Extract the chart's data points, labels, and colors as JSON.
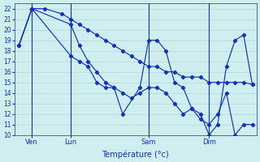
{
  "bg_color": "#d0eef0",
  "grid_color": "#b0d8d8",
  "line_color": "#1133bb",
  "marker": "D",
  "markersize": 2.2,
  "linewidth": 0.85,
  "xlabel": "Température (°c)",
  "ylim": [
    10,
    22.5
  ],
  "yticks": [
    10,
    11,
    12,
    13,
    14,
    15,
    16,
    17,
    18,
    19,
    20,
    21,
    22
  ],
  "xtick_labels": [
    "Ven",
    "Lun",
    "Sam",
    "Dim"
  ],
  "series": [
    {
      "x": [
        0,
        1.5,
        3,
        5,
        6,
        7,
        8,
        9,
        10,
        11,
        12,
        13,
        14,
        15,
        16,
        17,
        18,
        19,
        20,
        21,
        22,
        23,
        24,
        25,
        26,
        27
      ],
      "y": [
        18.5,
        22,
        22,
        21.5,
        21,
        20.5,
        20,
        19.5,
        19,
        18.5,
        18,
        17.5,
        17,
        16.5,
        16.5,
        16,
        16,
        15.5,
        15.5,
        15.5,
        15,
        15,
        15,
        15,
        15,
        14.8
      ]
    },
    {
      "x": [
        0,
        1.5,
        6,
        7,
        8,
        9,
        10,
        11,
        12,
        13,
        14,
        15,
        16,
        17,
        18,
        19,
        20,
        21,
        22,
        23,
        24,
        25,
        26,
        27
      ],
      "y": [
        18.5,
        22,
        17.5,
        17,
        16.5,
        15,
        14.5,
        14.5,
        14,
        13.5,
        14,
        14.5,
        14.5,
        14,
        13,
        12,
        12.5,
        11.5,
        11,
        12,
        14,
        10,
        11,
        11
      ]
    },
    {
      "x": [
        0,
        1.5,
        6,
        7,
        8,
        9,
        10,
        11,
        12,
        14,
        15,
        16,
        17,
        18,
        19,
        20,
        21,
        22,
        23,
        24,
        25,
        26,
        27
      ],
      "y": [
        18.5,
        22,
        20.5,
        18.5,
        17,
        16,
        15,
        14.5,
        12,
        14.5,
        19,
        19,
        18,
        15,
        14.5,
        12.5,
        12,
        10,
        11,
        16.5,
        19,
        19.5,
        14.8
      ]
    }
  ],
  "vline_positions": [
    1.5,
    6,
    15,
    22
  ],
  "xtick_positions": [
    1.5,
    6,
    15,
    22
  ]
}
